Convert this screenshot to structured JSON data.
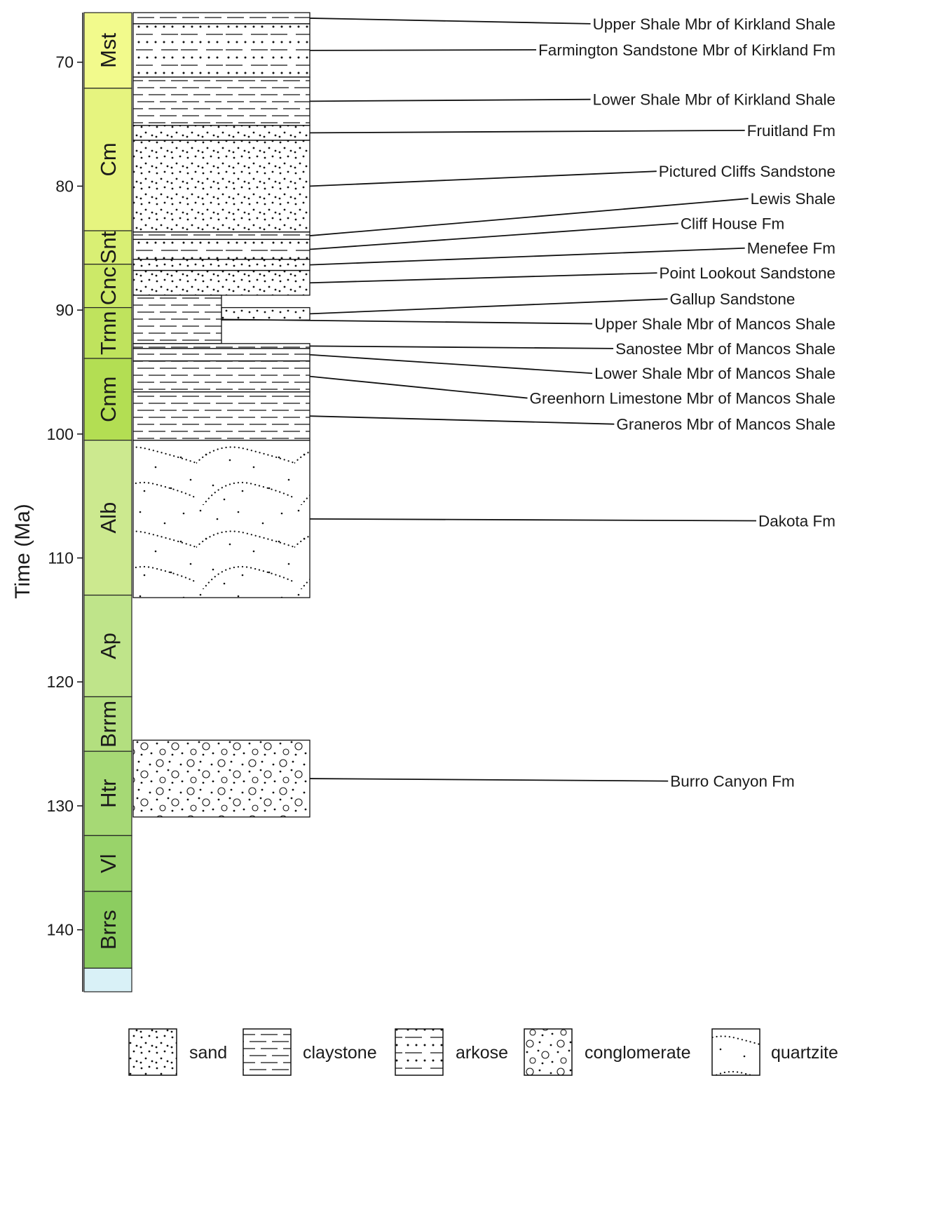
{
  "chart_data": {
    "type": "stratigraphic-column",
    "ylabel": "Time (Ma)",
    "y_ticks": [
      70,
      80,
      90,
      100,
      110,
      120,
      130,
      140
    ],
    "ylim": [
      65.5,
      145.5
    ],
    "stages": [
      {
        "label": "Mst",
        "top": 66.0,
        "bottom": 72.1,
        "color": "#f2fa8c"
      },
      {
        "label": "Cm",
        "top": 72.1,
        "bottom": 83.6,
        "color": "#e6f47f"
      },
      {
        "label": "Snt",
        "top": 83.6,
        "bottom": 86.3,
        "color": "#d9ef74"
      },
      {
        "label": "Cnc",
        "top": 86.3,
        "bottom": 89.8,
        "color": "#cce968"
      },
      {
        "label": "Trnn",
        "top": 89.8,
        "bottom": 93.9,
        "color": "#bfe35d"
      },
      {
        "label": "Cnm",
        "top": 93.9,
        "bottom": 100.5,
        "color": "#b3de53"
      },
      {
        "label": "Alb",
        "top": 100.5,
        "bottom": 113.0,
        "color": "#cce98f"
      },
      {
        "label": "Ap",
        "top": 113.0,
        "bottom": 121.2,
        "color": "#bfe48a"
      },
      {
        "label": "Brrm",
        "top": 121.2,
        "bottom": 125.6,
        "color": "#b3df7f"
      },
      {
        "label": "Htr",
        "top": 125.6,
        "bottom": 132.4,
        "color": "#a6d975"
      },
      {
        "label": "Vl",
        "top": 132.4,
        "bottom": 136.9,
        "color": "#99d36a"
      },
      {
        "label": "Brrs",
        "top": 136.9,
        "bottom": 143.1,
        "color": "#8ccd60"
      },
      {
        "label": "",
        "top": 143.1,
        "bottom": 145.0,
        "color": "#d9f1f7"
      }
    ],
    "units": [
      {
        "name": "Upper Shale Mbr of Kirkland Shale",
        "top": 66.0,
        "bottom": 66.9,
        "lith": "claystone",
        "width": "full",
        "label_y": 66.9,
        "label_anchor": "end"
      },
      {
        "name": "Farmington Sandstone Mbr of Kirkland Fm",
        "top": 66.9,
        "bottom": 71.2,
        "lith": "arkose",
        "width": "full",
        "label_y": 69.0,
        "label_anchor": "end"
      },
      {
        "name": "Lower Shale Mbr of Kirkland Shale",
        "top": 71.2,
        "bottom": 75.1,
        "lith": "claystone",
        "width": "full",
        "label_y": 73.0,
        "label_anchor": "end"
      },
      {
        "name": "Fruitland Fm",
        "top": 75.1,
        "bottom": 76.3,
        "lith": "sand",
        "width": "full",
        "label_y": 75.5,
        "label_anchor": "end"
      },
      {
        "name": "Pictured Cliffs Sandstone",
        "top": 76.3,
        "bottom": 83.7,
        "lith": "sand",
        "width": "full",
        "label_y": 78.8,
        "label_anchor": "end"
      },
      {
        "name": "Lewis Shale",
        "top": 83.7,
        "bottom": 84.3,
        "lith": "claystone",
        "width": "full",
        "label_y": 81.0,
        "label_anchor": "end"
      },
      {
        "name": "Cliff House Fm",
        "top": 84.3,
        "bottom": 85.9,
        "lith": "arkose",
        "width": "full",
        "label_y": 83.0,
        "label_anchor": "middle"
      },
      {
        "name": "Menefee Fm",
        "top": 85.9,
        "bottom": 86.8,
        "lith": "sand",
        "width": "full",
        "label_y": 85.0,
        "label_anchor": "end"
      },
      {
        "name": "Point Lookout Sandstone",
        "top": 86.8,
        "bottom": 88.8,
        "lith": "sand",
        "width": "full",
        "label_y": 87.0,
        "label_anchor": "end"
      },
      {
        "name": "Gallup Sandstone",
        "top": 89.8,
        "bottom": 90.8,
        "lith": "sand",
        "width": "half",
        "label_y": 89.1,
        "label_anchor": "middle"
      },
      {
        "name": "Upper Shale Mbr of Mancos Shale",
        "top": 88.8,
        "bottom": 92.7,
        "lith": "claystone",
        "width": "half-left",
        "label_y": 91.1,
        "label_anchor": "end"
      },
      {
        "name": "Sanostee Mbr of Mancos Shale",
        "top": 92.7,
        "bottom": 93.1,
        "lith": "claystone",
        "width": "full",
        "label_y": 93.1,
        "label_anchor": "end"
      },
      {
        "name": "Lower Shale Mbr of Mancos Shale",
        "top": 93.1,
        "bottom": 94.1,
        "lith": "claystone",
        "width": "full",
        "label_y": 95.1,
        "label_anchor": "end"
      },
      {
        "name": "Greenhorn Limestone Mbr of Mancos Shale",
        "top": 94.1,
        "bottom": 96.6,
        "lith": "claystone",
        "width": "full",
        "label_y": 97.1,
        "label_anchor": "end"
      },
      {
        "name": "Graneros Mbr of Mancos Shale",
        "top": 96.6,
        "bottom": 100.5,
        "lith": "claystone",
        "width": "full",
        "label_y": 99.2,
        "label_anchor": "end"
      },
      {
        "name": "Dakota Fm",
        "top": 100.5,
        "bottom": 113.2,
        "lith": "quartzite",
        "width": "full",
        "label_y": 107.0,
        "label_anchor": "end"
      },
      {
        "name": "Burro Canyon Fm",
        "top": 124.7,
        "bottom": 130.9,
        "lith": "conglomerate",
        "width": "full",
        "label_y": 128.0,
        "label_anchor": "middle"
      }
    ],
    "legend": [
      {
        "label": "sand",
        "lith": "sand"
      },
      {
        "label": "claystone",
        "lith": "claystone"
      },
      {
        "label": "arkose",
        "lith": "arkose"
      },
      {
        "label": "conglomerate",
        "lith": "conglomerate"
      },
      {
        "label": "quartzite",
        "lith": "quartzite"
      }
    ]
  }
}
